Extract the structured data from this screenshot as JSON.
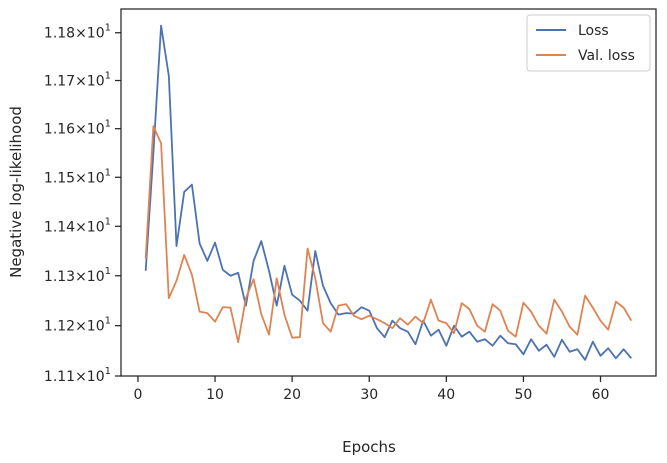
{
  "chart_data": {
    "type": "line",
    "xlabel": "Epochs",
    "ylabel": "Negative log-likelihood",
    "xlim": [
      -2.2,
      67.2
    ],
    "ylim": [
      11.1,
      11.85
    ],
    "yscale": "log",
    "xticks": [
      0,
      10,
      20,
      30,
      40,
      50,
      60
    ],
    "xtick_labels": [
      "0",
      "10",
      "20",
      "30",
      "40",
      "50",
      "60"
    ],
    "yticks": [
      11.1,
      11.2,
      11.3,
      11.4,
      11.5,
      11.6,
      11.7,
      11.8
    ],
    "ytick_labels": [
      {
        "mantissa": "1.11",
        "exp": "1"
      },
      {
        "mantissa": "1.12",
        "exp": "1"
      },
      {
        "mantissa": "1.13",
        "exp": "1"
      },
      {
        "mantissa": "1.14",
        "exp": "1"
      },
      {
        "mantissa": "1.15",
        "exp": "1"
      },
      {
        "mantissa": "1.16",
        "exp": "1"
      },
      {
        "mantissa": "1.17",
        "exp": "1"
      },
      {
        "mantissa": "1.18",
        "exp": "1"
      }
    ],
    "legend_position": "top-right",
    "grid": false,
    "series": [
      {
        "name": "Loss",
        "color": "#4c72b0",
        "x": [
          1,
          2,
          3,
          4,
          5,
          6,
          7,
          8,
          9,
          10,
          11,
          12,
          13,
          14,
          15,
          16,
          17,
          18,
          19,
          20,
          21,
          22,
          23,
          24,
          25,
          26,
          27,
          28,
          29,
          30,
          31,
          32,
          33,
          34,
          35,
          36,
          37,
          38,
          39,
          40,
          41,
          42,
          43,
          44,
          45,
          46,
          47,
          48,
          49,
          50,
          51,
          52,
          53,
          54,
          55,
          56,
          57,
          58,
          59,
          60,
          61,
          62,
          63,
          64
        ],
        "values": [
          11.31,
          11.55,
          11.815,
          11.71,
          11.36,
          11.47,
          11.485,
          11.365,
          11.33,
          11.367,
          11.312,
          11.3,
          11.306,
          11.24,
          11.33,
          11.37,
          11.31,
          11.24,
          11.32,
          11.262,
          11.25,
          11.23,
          11.35,
          11.28,
          11.245,
          11.222,
          11.225,
          11.224,
          11.237,
          11.23,
          11.195,
          11.177,
          11.21,
          11.195,
          11.188,
          11.163,
          11.21,
          11.18,
          11.192,
          11.16,
          11.2,
          11.178,
          11.188,
          11.168,
          11.173,
          11.16,
          11.18,
          11.165,
          11.163,
          11.143,
          11.173,
          11.15,
          11.162,
          11.138,
          11.172,
          11.148,
          11.153,
          11.132,
          11.168,
          11.14,
          11.155,
          11.135,
          11.153,
          11.135
        ]
      },
      {
        "name": "Val. loss",
        "color": "#dd8452",
        "x": [
          1,
          2,
          3,
          4,
          5,
          6,
          7,
          8,
          9,
          10,
          11,
          12,
          13,
          14,
          15,
          16,
          17,
          18,
          19,
          20,
          21,
          22,
          23,
          24,
          25,
          26,
          27,
          28,
          29,
          30,
          31,
          32,
          33,
          34,
          35,
          36,
          37,
          38,
          39,
          40,
          41,
          42,
          43,
          44,
          45,
          46,
          47,
          48,
          49,
          50,
          51,
          52,
          53,
          54,
          55,
          56,
          57,
          58,
          59,
          60,
          61,
          62,
          63,
          64
        ],
        "values": [
          11.335,
          11.605,
          11.57,
          11.255,
          11.29,
          11.342,
          11.302,
          11.228,
          11.225,
          11.208,
          11.237,
          11.236,
          11.167,
          11.255,
          11.293,
          11.223,
          11.182,
          11.295,
          11.222,
          11.176,
          11.177,
          11.355,
          11.295,
          11.205,
          11.188,
          11.24,
          11.243,
          11.22,
          11.213,
          11.22,
          11.213,
          11.205,
          11.195,
          11.215,
          11.202,
          11.218,
          11.205,
          11.252,
          11.21,
          11.205,
          11.185,
          11.245,
          11.233,
          11.2,
          11.188,
          11.243,
          11.23,
          11.19,
          11.178,
          11.246,
          11.228,
          11.2,
          11.184,
          11.252,
          11.228,
          11.198,
          11.182,
          11.26,
          11.236,
          11.21,
          11.192,
          11.248,
          11.236,
          11.21
        ]
      }
    ]
  }
}
